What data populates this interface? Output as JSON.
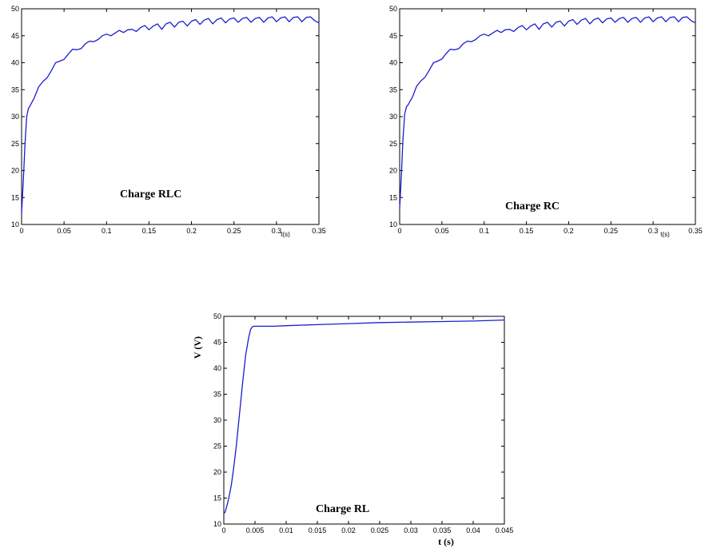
{
  "chart_data": [
    {
      "type": "line",
      "title": "",
      "annotation": "Charge RLC",
      "xlabel": "t(s)",
      "ylabel": "",
      "xlim": [
        0,
        0.35
      ],
      "ylim": [
        10,
        50
      ],
      "xticks": [
        0,
        0.05,
        0.1,
        0.15,
        0.2,
        0.25,
        0.3,
        0.35
      ],
      "xtick_labels": [
        "0",
        "0.05",
        "0.1",
        "0.15",
        "0.2",
        "0.25",
        "0.3",
        "0.35"
      ],
      "yticks": [
        10,
        15,
        20,
        25,
        30,
        35,
        40,
        45,
        50
      ],
      "grid": false,
      "line_color": "#1c1cd0",
      "series": [
        {
          "x": [
            0,
            0.002,
            0.004,
            0.006,
            0.008,
            0.01,
            0.015,
            0.02,
            0.025,
            0.03,
            0.035,
            0.04,
            0.045,
            0.05,
            0.055,
            0.06,
            0.065,
            0.07,
            0.075,
            0.08,
            0.085,
            0.09,
            0.095,
            0.1,
            0.105,
            0.11,
            0.115,
            0.12,
            0.125,
            0.13,
            0.135,
            0.14,
            0.145,
            0.15,
            0.155,
            0.16,
            0.165,
            0.17,
            0.175,
            0.18,
            0.185,
            0.19,
            0.195,
            0.2,
            0.205,
            0.21,
            0.215,
            0.22,
            0.225,
            0.23,
            0.235,
            0.24,
            0.245,
            0.25,
            0.255,
            0.26,
            0.265,
            0.27,
            0.275,
            0.28,
            0.285,
            0.29,
            0.295,
            0.3,
            0.305,
            0.31,
            0.315,
            0.32,
            0.325,
            0.33,
            0.335,
            0.34,
            0.345,
            0.35
          ],
          "y": [
            12,
            18,
            25,
            30,
            31.5,
            32,
            33.5,
            35.5,
            36.5,
            37.2,
            38.5,
            40,
            40.3,
            40.6,
            41.6,
            42.5,
            42.4,
            42.6,
            43.5,
            44,
            43.9,
            44.3,
            45,
            45.3,
            45,
            45.5,
            46,
            45.6,
            46.1,
            46.2,
            45.8,
            46.5,
            46.9,
            46.1,
            46.8,
            47.2,
            46.2,
            47.2,
            47.5,
            46.6,
            47.5,
            47.7,
            46.8,
            47.7,
            48,
            47.1,
            47.9,
            48.2,
            47.2,
            48,
            48.3,
            47.4,
            48.1,
            48.3,
            47.5,
            48.2,
            48.4,
            47.5,
            48.2,
            48.4,
            47.5,
            48.3,
            48.5,
            47.6,
            48.3,
            48.5,
            47.6,
            48.4,
            48.5,
            47.6,
            48.4,
            48.5,
            47.8,
            47.4
          ]
        }
      ]
    },
    {
      "type": "line",
      "title": "",
      "annotation": "Charge RC",
      "xlabel": "t(s)",
      "ylabel": "",
      "xlim": [
        0,
        0.35
      ],
      "ylim": [
        10,
        50
      ],
      "xticks": [
        0,
        0.05,
        0.1,
        0.15,
        0.2,
        0.25,
        0.3,
        0.35
      ],
      "xtick_labels": [
        "0",
        "0.05",
        "0.1",
        "0.15",
        "0.2",
        "0.25",
        "0.3",
        "0.35"
      ],
      "yticks": [
        10,
        15,
        20,
        25,
        30,
        35,
        40,
        45,
        50
      ],
      "grid": false,
      "line_color": "#1c1cd0",
      "series": [
        {
          "x": [
            0,
            0.002,
            0.004,
            0.006,
            0.008,
            0.01,
            0.015,
            0.02,
            0.025,
            0.03,
            0.035,
            0.04,
            0.045,
            0.05,
            0.055,
            0.06,
            0.065,
            0.07,
            0.075,
            0.08,
            0.085,
            0.09,
            0.095,
            0.1,
            0.105,
            0.11,
            0.115,
            0.12,
            0.125,
            0.13,
            0.135,
            0.14,
            0.145,
            0.15,
            0.155,
            0.16,
            0.165,
            0.17,
            0.175,
            0.18,
            0.185,
            0.19,
            0.195,
            0.2,
            0.205,
            0.21,
            0.215,
            0.22,
            0.225,
            0.23,
            0.235,
            0.24,
            0.245,
            0.25,
            0.255,
            0.26,
            0.265,
            0.27,
            0.275,
            0.28,
            0.285,
            0.29,
            0.295,
            0.3,
            0.305,
            0.31,
            0.315,
            0.32,
            0.325,
            0.33,
            0.335,
            0.34,
            0.345,
            0.35
          ],
          "y": [
            13,
            19,
            26,
            30.5,
            31.8,
            32.2,
            33.6,
            35.6,
            36.6,
            37.3,
            38.6,
            40,
            40.3,
            40.7,
            41.7,
            42.5,
            42.4,
            42.6,
            43.5,
            44,
            43.9,
            44.3,
            45,
            45.3,
            45,
            45.5,
            46,
            45.6,
            46.1,
            46.2,
            45.8,
            46.5,
            46.9,
            46.1,
            46.8,
            47.2,
            46.2,
            47.2,
            47.5,
            46.6,
            47.5,
            47.7,
            46.8,
            47.7,
            48,
            47.1,
            47.9,
            48.2,
            47.2,
            48,
            48.3,
            47.4,
            48.1,
            48.3,
            47.5,
            48.2,
            48.4,
            47.5,
            48.2,
            48.4,
            47.5,
            48.3,
            48.5,
            47.6,
            48.3,
            48.5,
            47.6,
            48.4,
            48.5,
            47.6,
            48.4,
            48.5,
            47.8,
            47.4
          ]
        }
      ]
    },
    {
      "type": "line",
      "title": "",
      "annotation": "Charge RL",
      "xlabel": "t (s)",
      "ylabel": "V (V)",
      "xlim": [
        0,
        0.045
      ],
      "ylim": [
        10,
        50
      ],
      "xticks": [
        0,
        0.005,
        0.01,
        0.015,
        0.02,
        0.025,
        0.03,
        0.035,
        0.04,
        0.045
      ],
      "xtick_labels": [
        "0",
        "0.005",
        "0.01",
        "0.015",
        "0.02",
        "0.025",
        "0.03",
        "0.035",
        "0.04",
        "0.045"
      ],
      "yticks": [
        10,
        15,
        20,
        25,
        30,
        35,
        40,
        45,
        50
      ],
      "grid": false,
      "line_color": "#1c1cd0",
      "series": [
        {
          "x": [
            0,
            0.0002,
            0.0005,
            0.0008,
            0.0012,
            0.0016,
            0.002,
            0.0025,
            0.003,
            0.0035,
            0.004,
            0.0043,
            0.0046,
            0.0048,
            0.005,
            0.006,
            0.008,
            0.01,
            0.015,
            0.02,
            0.025,
            0.03,
            0.035,
            0.04,
            0.045
          ],
          "y": [
            12,
            12.3,
            13.5,
            15,
            17.5,
            21,
            25,
            31,
            37,
            42.5,
            46,
            47.5,
            48,
            48.1,
            48.1,
            48.1,
            48.1,
            48.2,
            48.4,
            48.6,
            48.8,
            48.9,
            49,
            49.1,
            49.3
          ]
        }
      ]
    }
  ]
}
